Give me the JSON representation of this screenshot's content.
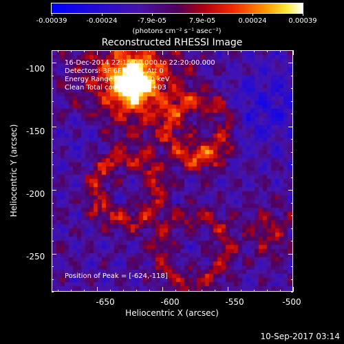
{
  "colorbar": {
    "tick_labels": [
      "-0.00039",
      "-0.00024",
      "-7.9e-05",
      "7.9e-05",
      "0.00024",
      "0.00039"
    ],
    "units_label": "(photons cm⁻² s⁻¹ asec⁻²)",
    "range": [
      -0.00039,
      0.00039
    ]
  },
  "plot": {
    "title": "Reconstructed RHESSI Image",
    "annotations": {
      "time": "16-Dec-2014 22:15:00.000 to 22:20:00.000",
      "detectors": "Detectors: 3F 6F 7F 9F, Att 0",
      "energy": "Energy Range: 25.0 - 50.0 keV",
      "method": "Clean     Total counts: 8.88E+03",
      "peak": "Position of Peak = [-624,-118]"
    }
  },
  "axes": {
    "x_title": "Heliocentric X (arcsec)",
    "y_title": "Heliocentric Y (arcsec)",
    "x_tick_labels": [
      "-650",
      "-600",
      "-550",
      "-500"
    ],
    "y_tick_labels": [
      "-100",
      "-150",
      "-200",
      "-250"
    ],
    "x_range": [
      -685,
      -500
    ],
    "y_range": [
      -280,
      -90
    ]
  },
  "footer": {
    "timestamp": "10-Sep-2017 03:14"
  }
}
